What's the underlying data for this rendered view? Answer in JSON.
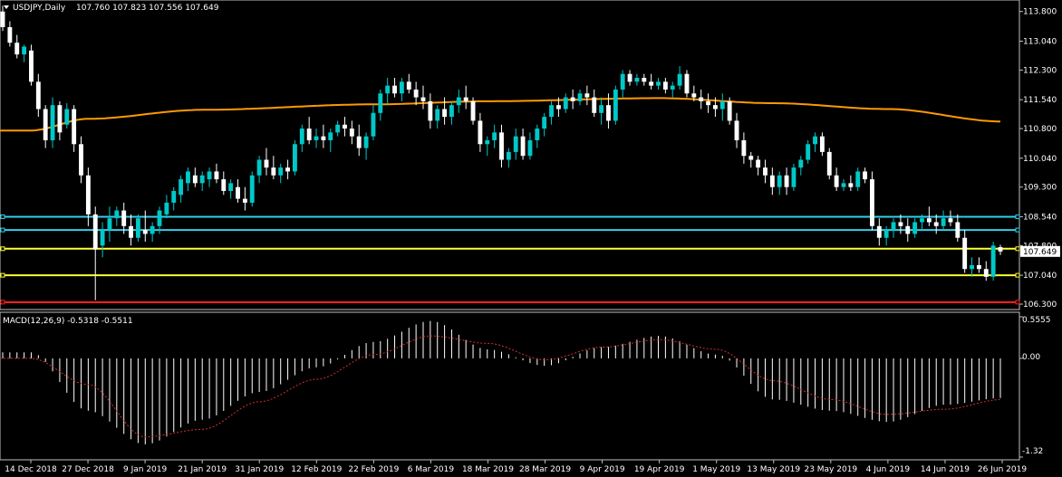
{
  "window": {
    "title": "USDJPY,Daily",
    "ohlc": "107.760 107.823 107.556 107.649",
    "current_price": "107.649"
  },
  "macd": {
    "label": "MACD(12,26,9) -0.5318 -0.5511",
    "max_label": "0.5555",
    "zero_label": "0.00",
    "min_label": "-1.32"
  },
  "colors": {
    "background": "#000000",
    "bull": "#00c8c8",
    "bear": "#ffffff",
    "ma": "#ff9900",
    "hline_cyan": "#33d0e8",
    "hline_yellow": "#ffff33",
    "hline_red": "#ff2020",
    "signal": "#d03030",
    "grid_text": "#ffffff"
  },
  "chart_data": [
    {
      "type": "candlestick",
      "title": "USDJPY,Daily",
      "ylim": [
        106.3,
        113.84
      ],
      "y_ticks": [
        "113.800",
        "113.040",
        "112.300",
        "111.540",
        "110.800",
        "110.040",
        "109.300",
        "108.540",
        "107.800",
        "107.040",
        "106.300"
      ],
      "x_ticks": [
        "14 Dec 2018",
        "27 Dec 2018",
        "9 Jan 2019",
        "21 Jan 2019",
        "31 Jan 2019",
        "12 Feb 2019",
        "22 Feb 2019",
        "6 Mar 2019",
        "18 Mar 2019",
        "28 Mar 2019",
        "9 Apr 2019",
        "19 Apr 2019",
        "1 May 2019",
        "13 May 2019",
        "23 May 2019",
        "4 Jun 2019",
        "14 Jun 2019",
        "26 Jun 2019"
      ],
      "horizontal_lines": [
        {
          "value": 108.54,
          "color": "cyan"
        },
        {
          "value": 108.2,
          "color": "cyan"
        },
        {
          "value": 107.72,
          "color": "yellow"
        },
        {
          "value": 107.04,
          "color": "yellow"
        },
        {
          "value": 106.35,
          "color": "red"
        }
      ],
      "moving_average_anchors": [
        {
          "date": "14 Dec 2018",
          "value": 110.75
        },
        {
          "date": "27 Dec 2018",
          "value": 111.05
        },
        {
          "date": "21 Jan 2019",
          "value": 111.28
        },
        {
          "date": "22 Feb 2019",
          "value": 111.42
        },
        {
          "date": "18 Mar 2019",
          "value": 111.5
        },
        {
          "date": "19 Apr 2019",
          "value": 111.58
        },
        {
          "date": "13 May 2019",
          "value": 111.45
        },
        {
          "date": "4 Jun 2019",
          "value": 111.3
        },
        {
          "date": "26 Jun 2019",
          "value": 110.98
        }
      ],
      "candles": [
        [
          113.8,
          113.95,
          113.3,
          113.4
        ],
        [
          113.4,
          113.55,
          112.9,
          113.0
        ],
        [
          113.0,
          113.2,
          112.6,
          112.7
        ],
        [
          112.7,
          112.95,
          112.5,
          112.9
        ],
        [
          112.8,
          112.95,
          111.9,
          112.0
        ],
        [
          112.0,
          112.2,
          111.1,
          111.3
        ],
        [
          111.3,
          111.4,
          110.3,
          110.5
        ],
        [
          110.5,
          111.6,
          110.3,
          111.4
        ],
        [
          111.4,
          111.5,
          110.5,
          110.7
        ],
        [
          110.9,
          111.45,
          110.8,
          111.3
        ],
        [
          111.3,
          111.4,
          110.2,
          110.4
        ],
        [
          110.4,
          110.6,
          109.4,
          109.6
        ],
        [
          109.6,
          109.8,
          108.3,
          108.6
        ],
        [
          108.6,
          108.8,
          106.4,
          107.7
        ],
        [
          107.8,
          108.4,
          107.5,
          108.2
        ],
        [
          108.2,
          108.8,
          107.9,
          108.5
        ],
        [
          108.5,
          108.8,
          108.3,
          108.7
        ],
        [
          108.7,
          108.9,
          108.1,
          108.3
        ],
        [
          108.3,
          108.6,
          107.8,
          108.0
        ],
        [
          108.0,
          108.6,
          107.9,
          108.5
        ],
        [
          108.2,
          108.7,
          107.9,
          108.1
        ],
        [
          108.1,
          108.4,
          107.9,
          108.3
        ],
        [
          108.3,
          108.8,
          108.1,
          108.7
        ],
        [
          108.6,
          109.1,
          108.5,
          108.9
        ],
        [
          108.9,
          109.3,
          108.7,
          109.2
        ],
        [
          109.1,
          109.6,
          108.9,
          109.5
        ],
        [
          109.4,
          109.8,
          109.2,
          109.7
        ],
        [
          109.6,
          109.8,
          109.3,
          109.4
        ],
        [
          109.4,
          109.7,
          109.2,
          109.6
        ],
        [
          109.5,
          109.8,
          109.3,
          109.7
        ],
        [
          109.7,
          109.9,
          109.4,
          109.5
        ],
        [
          109.5,
          109.7,
          109.1,
          109.2
        ],
        [
          109.2,
          109.5,
          109.0,
          109.4
        ],
        [
          109.3,
          109.5,
          108.9,
          109.0
        ],
        [
          109.0,
          109.3,
          108.7,
          108.9
        ],
        [
          108.9,
          109.7,
          108.8,
          109.6
        ],
        [
          109.6,
          110.1,
          109.4,
          110.0
        ],
        [
          110.0,
          110.3,
          109.6,
          109.8
        ],
        [
          109.8,
          110.1,
          109.5,
          109.6
        ],
        [
          109.6,
          109.9,
          109.4,
          109.8
        ],
        [
          109.8,
          110.0,
          109.5,
          109.7
        ],
        [
          109.7,
          110.5,
          109.6,
          110.4
        ],
        [
          110.4,
          110.9,
          110.2,
          110.8
        ],
        [
          110.8,
          111.1,
          110.4,
          110.5
        ],
        [
          110.5,
          110.8,
          110.3,
          110.6
        ],
        [
          110.6,
          110.9,
          110.3,
          110.5
        ],
        [
          110.5,
          110.8,
          110.2,
          110.7
        ],
        [
          110.7,
          111.0,
          110.6,
          110.9
        ],
        [
          110.9,
          111.1,
          110.6,
          110.8
        ],
        [
          110.8,
          111.0,
          110.4,
          110.6
        ],
        [
          110.6,
          110.9,
          110.1,
          110.3
        ],
        [
          110.3,
          110.7,
          110.0,
          110.6
        ],
        [
          110.6,
          111.4,
          110.5,
          111.2
        ],
        [
          111.2,
          111.8,
          111.0,
          111.7
        ],
        [
          111.7,
          112.1,
          111.4,
          111.9
        ],
        [
          111.9,
          112.1,
          111.6,
          111.7
        ],
        [
          111.7,
          112.1,
          111.5,
          112.0
        ],
        [
          112.0,
          112.2,
          111.7,
          111.8
        ],
        [
          111.8,
          112.0,
          111.4,
          111.6
        ],
        [
          111.6,
          111.9,
          111.3,
          111.5
        ],
        [
          111.5,
          111.7,
          110.8,
          111.0
        ],
        [
          111.0,
          111.4,
          110.8,
          111.3
        ],
        [
          111.3,
          111.6,
          110.9,
          111.1
        ],
        [
          111.1,
          111.5,
          110.9,
          111.4
        ],
        [
          111.4,
          111.8,
          111.2,
          111.6
        ],
        [
          111.6,
          111.9,
          111.3,
          111.5
        ],
        [
          111.5,
          111.6,
          110.9,
          111.0
        ],
        [
          111.0,
          111.2,
          110.2,
          110.4
        ],
        [
          110.4,
          110.6,
          110.1,
          110.5
        ],
        [
          110.5,
          110.9,
          110.3,
          110.7
        ],
        [
          110.7,
          110.9,
          109.8,
          110.0
        ],
        [
          110.0,
          110.3,
          109.8,
          110.2
        ],
        [
          110.2,
          110.8,
          110.0,
          110.6
        ],
        [
          110.6,
          110.8,
          110.0,
          110.1
        ],
        [
          110.1,
          110.7,
          110.0,
          110.5
        ],
        [
          110.5,
          110.9,
          110.3,
          110.8
        ],
        [
          110.8,
          111.2,
          110.6,
          111.1
        ],
        [
          111.1,
          111.5,
          110.9,
          111.4
        ],
        [
          111.4,
          111.6,
          111.1,
          111.3
        ],
        [
          111.3,
          111.7,
          111.2,
          111.6
        ],
        [
          111.6,
          111.8,
          111.3,
          111.5
        ],
        [
          111.5,
          111.8,
          111.4,
          111.7
        ],
        [
          111.7,
          111.9,
          111.4,
          111.6
        ],
        [
          111.6,
          111.8,
          111.1,
          111.2
        ],
        [
          111.2,
          111.6,
          110.9,
          111.4
        ],
        [
          111.4,
          111.7,
          110.8,
          111.0
        ],
        [
          111.0,
          111.9,
          110.9,
          111.8
        ],
        [
          111.8,
          112.3,
          111.6,
          112.2
        ],
        [
          112.2,
          112.3,
          111.9,
          112.0
        ],
        [
          112.0,
          112.2,
          111.9,
          112.1
        ],
        [
          112.1,
          112.2,
          111.9,
          112.0
        ],
        [
          112.0,
          112.2,
          111.8,
          111.9
        ],
        [
          111.9,
          112.1,
          111.8,
          112.0
        ],
        [
          112.0,
          112.1,
          111.7,
          111.8
        ],
        [
          111.8,
          112.0,
          111.6,
          111.9
        ],
        [
          111.9,
          112.4,
          111.8,
          112.2
        ],
        [
          112.2,
          112.3,
          111.6,
          111.7
        ],
        [
          111.7,
          111.9,
          111.5,
          111.6
        ],
        [
          111.6,
          111.8,
          111.3,
          111.5
        ],
        [
          111.5,
          111.7,
          111.2,
          111.4
        ],
        [
          111.4,
          111.6,
          111.1,
          111.3
        ],
        [
          111.3,
          111.7,
          111.0,
          111.5
        ],
        [
          111.5,
          111.6,
          110.9,
          111.0
        ],
        [
          111.0,
          111.2,
          110.3,
          110.5
        ],
        [
          110.5,
          110.7,
          109.9,
          110.1
        ],
        [
          110.1,
          110.2,
          109.8,
          110.0
        ],
        [
          110.0,
          110.1,
          109.6,
          109.8
        ],
        [
          109.8,
          110.0,
          109.4,
          109.6
        ],
        [
          109.6,
          109.8,
          109.1,
          109.3
        ],
        [
          109.3,
          109.7,
          109.1,
          109.6
        ],
        [
          109.6,
          109.8,
          109.1,
          109.3
        ],
        [
          109.3,
          109.9,
          109.2,
          109.8
        ],
        [
          109.8,
          110.1,
          109.6,
          110.0
        ],
        [
          110.0,
          110.5,
          109.9,
          110.4
        ],
        [
          110.4,
          110.7,
          110.2,
          110.6
        ],
        [
          110.6,
          110.7,
          110.1,
          110.2
        ],
        [
          110.2,
          110.3,
          109.5,
          109.6
        ],
        [
          109.6,
          109.8,
          109.2,
          109.3
        ],
        [
          109.3,
          109.5,
          109.2,
          109.4
        ],
        [
          109.4,
          109.6,
          109.2,
          109.3
        ],
        [
          109.3,
          109.8,
          109.2,
          109.7
        ],
        [
          109.7,
          109.8,
          109.4,
          109.5
        ],
        [
          109.5,
          109.7,
          108.2,
          108.3
        ],
        [
          108.3,
          108.5,
          107.8,
          108.0
        ],
        [
          108.0,
          108.3,
          107.8,
          108.2
        ],
        [
          108.2,
          108.5,
          108.0,
          108.4
        ],
        [
          108.4,
          108.6,
          108.1,
          108.3
        ],
        [
          108.3,
          108.5,
          107.9,
          108.1
        ],
        [
          108.1,
          108.5,
          108.0,
          108.4
        ],
        [
          108.4,
          108.6,
          108.2,
          108.5
        ],
        [
          108.5,
          108.8,
          108.3,
          108.4
        ],
        [
          108.4,
          108.6,
          108.1,
          108.3
        ],
        [
          108.3,
          108.7,
          108.2,
          108.5
        ],
        [
          108.5,
          108.7,
          108.3,
          108.4
        ],
        [
          108.4,
          108.6,
          107.9,
          108.0
        ],
        [
          108.0,
          108.2,
          107.1,
          107.2
        ],
        [
          107.2,
          107.5,
          107.0,
          107.3
        ],
        [
          107.3,
          107.5,
          107.1,
          107.2
        ],
        [
          107.2,
          107.4,
          106.9,
          107.0
        ],
        [
          107.0,
          107.9,
          106.9,
          107.8
        ],
        [
          107.76,
          107.82,
          107.56,
          107.65
        ]
      ]
    },
    {
      "type": "bar",
      "title": "MACD(12,26,9) -0.5318 -0.5511",
      "ylim": [
        -1.32,
        0.5555
      ],
      "macd_anchors": [
        {
          "date": "14 Dec 2018",
          "value": 0.08
        },
        {
          "date": "27 Dec 2018",
          "value": -0.7
        },
        {
          "date": "9 Jan 2019",
          "value": -1.15
        },
        {
          "date": "21 Jan 2019",
          "value": -0.82
        },
        {
          "date": "31 Jan 2019",
          "value": -0.45
        },
        {
          "date": "12 Feb 2019",
          "value": -0.12
        },
        {
          "date": "22 Feb 2019",
          "value": 0.22
        },
        {
          "date": "6 Mar 2019",
          "value": 0.5
        },
        {
          "date": "18 Mar 2019",
          "value": 0.12
        },
        {
          "date": "28 Mar 2019",
          "value": -0.1
        },
        {
          "date": "9 Apr 2019",
          "value": 0.15
        },
        {
          "date": "19 Apr 2019",
          "value": 0.3
        },
        {
          "date": "1 May 2019",
          "value": 0.05
        },
        {
          "date": "13 May 2019",
          "value": -0.55
        },
        {
          "date": "23 May 2019",
          "value": -0.7
        },
        {
          "date": "4 Jun 2019",
          "value": -0.85
        },
        {
          "date": "14 Jun 2019",
          "value": -0.62
        },
        {
          "date": "26 Jun 2019",
          "value": -0.53
        }
      ],
      "signal_anchors": [
        {
          "date": "14 Dec 2018",
          "value": 0.0
        },
        {
          "date": "27 Dec 2018",
          "value": -0.35
        },
        {
          "date": "9 Jan 2019",
          "value": -1.05
        },
        {
          "date": "21 Jan 2019",
          "value": -0.95
        },
        {
          "date": "31 Jan 2019",
          "value": -0.58
        },
        {
          "date": "12 Feb 2019",
          "value": -0.28
        },
        {
          "date": "22 Feb 2019",
          "value": 0.05
        },
        {
          "date": "6 Mar 2019",
          "value": 0.3
        },
        {
          "date": "18 Mar 2019",
          "value": 0.2
        },
        {
          "date": "28 Mar 2019",
          "value": -0.02
        },
        {
          "date": "9 Apr 2019",
          "value": 0.15
        },
        {
          "date": "19 Apr 2019",
          "value": 0.25
        },
        {
          "date": "1 May 2019",
          "value": 0.12
        },
        {
          "date": "13 May 2019",
          "value": -0.3
        },
        {
          "date": "23 May 2019",
          "value": -0.55
        },
        {
          "date": "4 Jun 2019",
          "value": -0.75
        },
        {
          "date": "14 Jun 2019",
          "value": -0.68
        },
        {
          "date": "26 Jun 2019",
          "value": -0.55
        }
      ]
    }
  ]
}
